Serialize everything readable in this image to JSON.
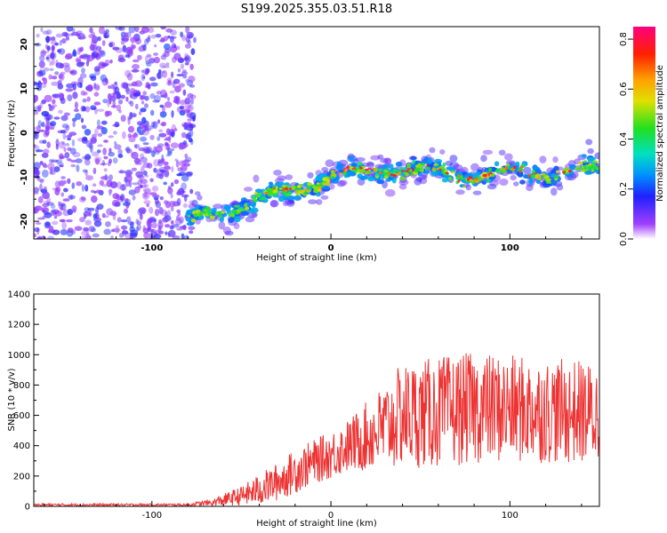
{
  "chart_data": [
    {
      "type": "heatmap",
      "title": "S199.2025.355.03.51.R18",
      "xlabel": "Height of straight line (km)",
      "ylabel": "Frequency (Hz)",
      "xlim": [
        -166,
        150
      ],
      "ylim": [
        -24,
        24
      ],
      "xticks": [
        -100,
        0,
        100
      ],
      "yticks": [
        -20,
        -10,
        0,
        10,
        20
      ],
      "colorbar": {
        "label": "Normalized spectral amplitude",
        "range": [
          0,
          0.85
        ],
        "ticks": [
          0.0,
          0.2,
          0.4,
          0.6,
          0.8
        ]
      },
      "features": {
        "noise_region_x": [
          -166,
          -76
        ],
        "ridge_x": [
          -80,
          2,
          30,
          80,
          150
        ],
        "ridge_frequency_hz": [
          -20,
          -10,
          -8,
          -9.5,
          -8.5
        ],
        "peak_amplitude": 0.82
      }
    },
    {
      "type": "line",
      "xlabel": "Height of straight line (km)",
      "ylabel": "SNR (10 * v/v)",
      "xlim": [
        -166,
        150
      ],
      "ylim": [
        0,
        1400
      ],
      "xticks": [
        -100,
        0,
        100
      ],
      "yticks": [
        0,
        200,
        400,
        600,
        800,
        1000,
        1200,
        1400
      ],
      "color": "#ee3333",
      "envelope_x": [
        -166,
        -80,
        -66,
        -50,
        -40,
        -30,
        -20,
        -10,
        0,
        10,
        20,
        30,
        40,
        60,
        80,
        100,
        120,
        140,
        150
      ],
      "envelope_median": [
        10,
        10,
        25,
        70,
        110,
        160,
        230,
        290,
        340,
        400,
        460,
        520,
        600,
        620,
        650,
        640,
        630,
        620,
        600
      ],
      "envelope_spread": [
        8,
        8,
        25,
        60,
        100,
        120,
        140,
        140,
        150,
        170,
        220,
        280,
        330,
        350,
        350,
        340,
        330,
        330,
        320
      ]
    }
  ]
}
